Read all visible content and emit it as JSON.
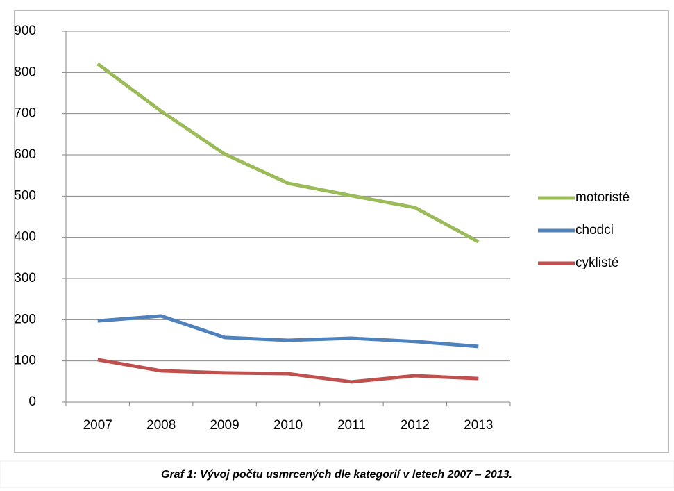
{
  "chart_data": {
    "type": "line",
    "categories": [
      "2007",
      "2008",
      "2009",
      "2010",
      "2011",
      "2012",
      "2013"
    ],
    "series": [
      {
        "name": "motoristé",
        "color": "#9bbb59",
        "values": [
          821,
          706,
          602,
          531,
          501,
          472,
          389
        ]
      },
      {
        "name": "chodci",
        "color": "#4f81bd",
        "values": [
          197,
          209,
          157,
          150,
          155,
          147,
          135
        ]
      },
      {
        "name": "cyklisté",
        "color": "#c0504d",
        "values": [
          103,
          76,
          71,
          69,
          49,
          64,
          57
        ]
      }
    ],
    "ylim": [
      0,
      900
    ],
    "yticks": [
      0,
      100,
      200,
      300,
      400,
      500,
      600,
      700,
      800,
      900
    ],
    "grid": true,
    "legend": "right"
  },
  "caption": "Graf 1: Vývoj počtu usmrcených dle kategorií v letech 2007 – 2013."
}
